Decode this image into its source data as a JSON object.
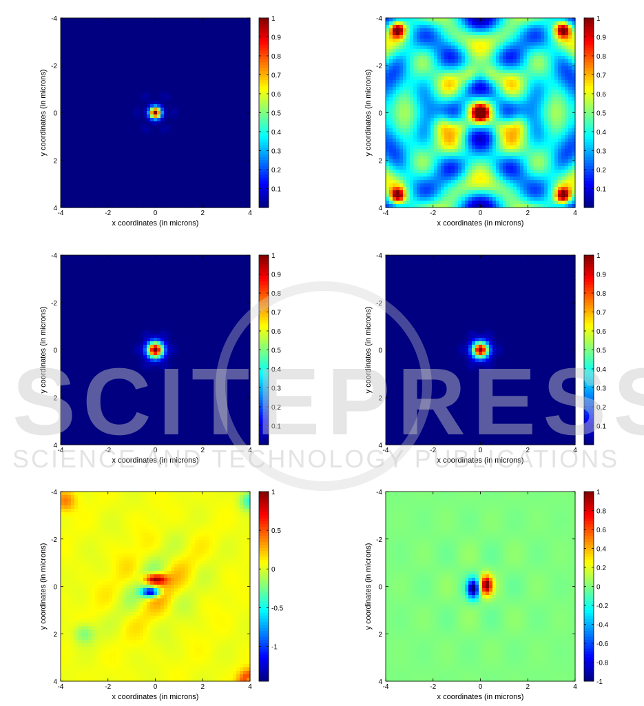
{
  "watermark": {
    "main": "SCITEPRESS",
    "sub": "SCIENCE AND TECHNOLOGY PUBLICATIONS"
  },
  "colormap": "jet",
  "chart_data": [
    {
      "type": "heatmap",
      "xlabel": "x coordinates (in microns)",
      "ylabel": "y coordinates (in microns)",
      "xlim": [
        -4,
        4
      ],
      "ylim": [
        -4,
        4
      ],
      "x_ticks": [
        "-4",
        "-2",
        "0",
        "2",
        "4"
      ],
      "y_ticks": [
        "-4",
        "-2",
        "0",
        "2",
        "4"
      ],
      "colorbar_ticks": [
        "0.1",
        "0.2",
        "0.3",
        "0.4",
        "0.5",
        "0.6",
        "0.7",
        "0.8",
        "0.9",
        "1"
      ],
      "colorbar_range": [
        0,
        1
      ],
      "pattern": "central-spot",
      "spot_center": [
        0,
        0
      ],
      "spot_sigma": 0.18
    },
    {
      "type": "heatmap",
      "xlabel": "x coordinates (in microns)",
      "ylabel": "y coordinates (in microns)",
      "xlim": [
        -4,
        4
      ],
      "ylim": [
        -4,
        4
      ],
      "x_ticks": [
        "-4",
        "-2",
        "0",
        "2",
        "4"
      ],
      "y_ticks": [
        "-4",
        "-2",
        "0",
        "2",
        "4"
      ],
      "colorbar_ticks": [
        "0.1",
        "0.2",
        "0.3",
        "0.4",
        "0.5",
        "0.6",
        "0.7",
        "0.8",
        "0.9",
        "1"
      ],
      "colorbar_range": [
        0,
        1
      ],
      "pattern": "speckle",
      "peak_center": [
        0,
        0
      ]
    },
    {
      "type": "heatmap",
      "xlabel": "x coordinates (in microns)",
      "ylabel": "y coordinates (in microns)",
      "xlim": [
        -4,
        4
      ],
      "ylim": [
        -4,
        4
      ],
      "x_ticks": [
        "-4",
        "-2",
        "0",
        "2",
        "4"
      ],
      "y_ticks": [
        "-4",
        "-2",
        "0",
        "2",
        "4"
      ],
      "colorbar_ticks": [
        "0.1",
        "0.2",
        "0.3",
        "0.4",
        "0.5",
        "0.6",
        "0.7",
        "0.8",
        "0.9",
        "1"
      ],
      "colorbar_range": [
        0,
        1
      ],
      "pattern": "central-spot",
      "spot_center": [
        0,
        0
      ],
      "spot_sigma": 0.25
    },
    {
      "type": "heatmap",
      "xlabel": "x coordinates (in microns)",
      "ylabel": "y coordinates (in microns)",
      "xlim": [
        -4,
        4
      ],
      "ylim": [
        -4,
        4
      ],
      "x_ticks": [
        "-4",
        "-2",
        "0",
        "2",
        "4"
      ],
      "y_ticks": [
        "-4",
        "-2",
        "0",
        "2",
        "4"
      ],
      "colorbar_ticks": [
        "0.1",
        "0.2",
        "0.3",
        "0.4",
        "0.5",
        "0.6",
        "0.7",
        "0.8",
        "0.9",
        "1"
      ],
      "colorbar_range": [
        0,
        1
      ],
      "pattern": "central-spot",
      "spot_center": [
        0,
        0
      ],
      "spot_sigma": 0.25
    },
    {
      "type": "heatmap",
      "xlabel": "x coordinates (in microns)",
      "ylabel": "y coordinates (in microns)",
      "xlim": [
        -4,
        4
      ],
      "ylim": [
        -4,
        4
      ],
      "x_ticks": [
        "-4",
        "-2",
        "0",
        "2",
        "4"
      ],
      "y_ticks": [
        "-4",
        "-2",
        "0",
        "2",
        "4"
      ],
      "colorbar_ticks": [
        "-1",
        "-0.5",
        "0",
        "0.5",
        "1"
      ],
      "colorbar_range": [
        -1.45,
        1
      ],
      "pattern": "dipole-vertical",
      "positive_lobe": [
        0,
        -0.3
      ],
      "negative_lobe": [
        -0.2,
        0.25
      ]
    },
    {
      "type": "heatmap",
      "xlabel": "x coordinates (in microns)",
      "ylabel": "y coordinates (in microns)",
      "xlim": [
        -4,
        4
      ],
      "ylim": [
        -4,
        4
      ],
      "x_ticks": [
        "-4",
        "-2",
        "0",
        "2",
        "4"
      ],
      "y_ticks": [
        "-4",
        "-2",
        "0",
        "2",
        "4"
      ],
      "colorbar_ticks": [
        "-1",
        "-0.8",
        "-0.6",
        "-0.4",
        "-0.2",
        "0",
        "0.2",
        "0.4",
        "0.6",
        "0.8",
        "1"
      ],
      "colorbar_range": [
        -1,
        1
      ],
      "pattern": "dipole-horizontal",
      "positive_lobe": [
        0.25,
        -0.05
      ],
      "negative_lobe": [
        -0.3,
        0.1
      ]
    }
  ]
}
